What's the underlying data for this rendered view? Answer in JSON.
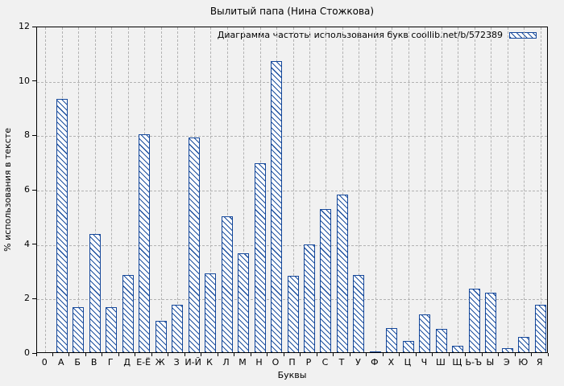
{
  "chart_data": {
    "type": "bar",
    "title": "Вылитый папа (Нина Стожкова)",
    "legend_label": "Диаграмма частоты использования букв coollib.net/b/572389",
    "xlabel": "Буквы",
    "ylabel": "% использования в тексте",
    "ylim": [
      0,
      12
    ],
    "yticks": [
      0,
      2,
      4,
      6,
      8,
      10,
      12
    ],
    "grid": true,
    "legend_position": "top-right",
    "categories": [
      "0",
      "А",
      "Б",
      "В",
      "Г",
      "Д",
      "Е-Ё",
      "Ж",
      "З",
      "И-Й",
      "К",
      "Л",
      "М",
      "Н",
      "О",
      "П",
      "Р",
      "С",
      "Т",
      "У",
      "Ф",
      "Х",
      "Ц",
      "Ч",
      "Ш",
      "Щ",
      "Ь-Ъ",
      "Ы",
      "Э",
      "Ю",
      "Я"
    ],
    "values": [
      0,
      9.3,
      1.65,
      4.35,
      1.65,
      2.85,
      8.0,
      1.15,
      1.75,
      7.9,
      2.9,
      5.0,
      3.65,
      6.95,
      10.7,
      2.8,
      3.95,
      5.25,
      5.8,
      2.85,
      0.03,
      0.9,
      0.4,
      1.4,
      0.85,
      0.25,
      2.35,
      2.2,
      0.15,
      0.55,
      1.75
    ]
  },
  "colors": {
    "bar_border": "#14479a",
    "bar_hatch": "#1c4f9e",
    "bar_fill": "#ffffff",
    "grid": "#b2b2b2",
    "axis": "#000000",
    "background": "#f1f1f1"
  }
}
